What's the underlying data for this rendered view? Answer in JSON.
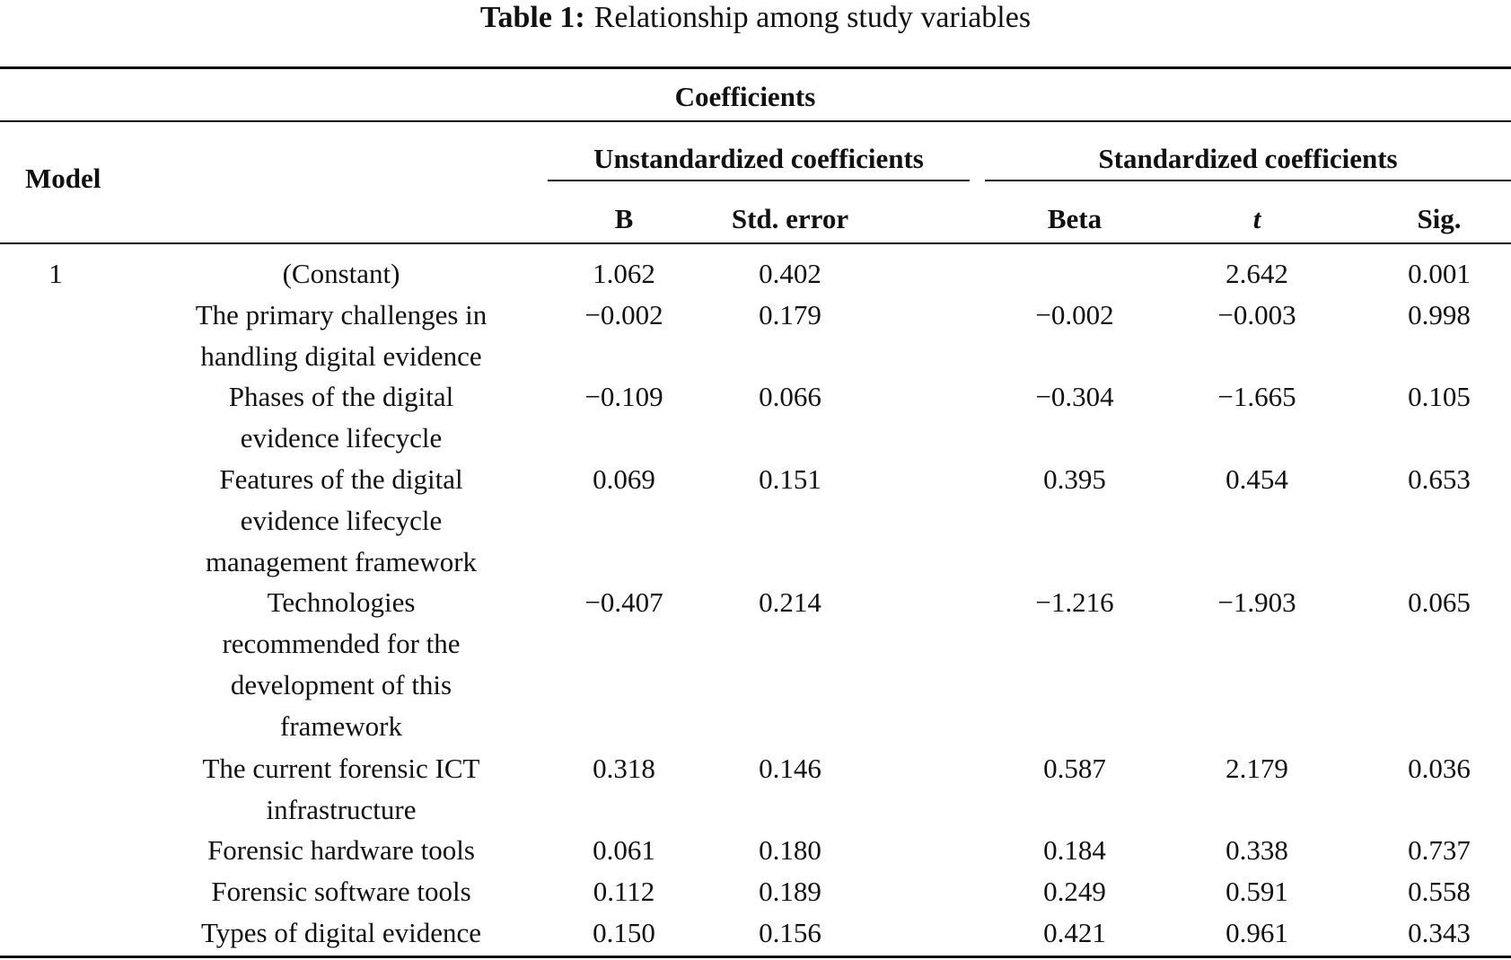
{
  "caption": {
    "label": "Table 1:",
    "text": "Relationship among study variables"
  },
  "header": {
    "group_title": "Coefficients",
    "model": "Model",
    "unstandardized": "Unstandardized coefficients",
    "standardized": "Standardized coefficients",
    "col_b": "B",
    "col_std_error": "Std. error",
    "col_beta": "Beta",
    "col_t": "t",
    "col_sig": "Sig."
  },
  "rows": [
    {
      "model": "1",
      "variable": "(Constant)",
      "b": "1.062",
      "std_error": "0.402",
      "beta": "",
      "t": "2.642",
      "sig": "0.001"
    },
    {
      "model": "",
      "variable": "The primary challenges in\nhandling digital evidence",
      "b": "−0.002",
      "std_error": "0.179",
      "beta": "−0.002",
      "t": "−0.003",
      "sig": "0.998"
    },
    {
      "model": "",
      "variable": "Phases of the digital\nevidence lifecycle",
      "b": "−0.109",
      "std_error": "0.066",
      "beta": "−0.304",
      "t": "−1.665",
      "sig": "0.105"
    },
    {
      "model": "",
      "variable": "Features of the digital\nevidence lifecycle\nmanagement framework",
      "b": "0.069",
      "std_error": "0.151",
      "beta": "0.395",
      "t": "0.454",
      "sig": "0.653"
    },
    {
      "model": "",
      "variable": "Technologies\nrecommended for the\ndevelopment of this\nframework",
      "b": "−0.407",
      "std_error": "0.214",
      "beta": "−1.216",
      "t": "−1.903",
      "sig": "0.065"
    },
    {
      "model": "",
      "variable": "The current forensic ICT\ninfrastructure",
      "b": "0.318",
      "std_error": "0.146",
      "beta": "0.587",
      "t": "2.179",
      "sig": "0.036"
    },
    {
      "model": "",
      "variable": "Forensic hardware tools",
      "b": "0.061",
      "std_error": "0.180",
      "beta": "0.184",
      "t": "0.338",
      "sig": "0.737"
    },
    {
      "model": "",
      "variable": "Forensic software tools",
      "b": "0.112",
      "std_error": "0.189",
      "beta": "0.249",
      "t": "0.591",
      "sig": "0.558"
    },
    {
      "model": "",
      "variable": "Types of digital evidence",
      "b": "0.150",
      "std_error": "0.156",
      "beta": "0.421",
      "t": "0.961",
      "sig": "0.343"
    }
  ]
}
